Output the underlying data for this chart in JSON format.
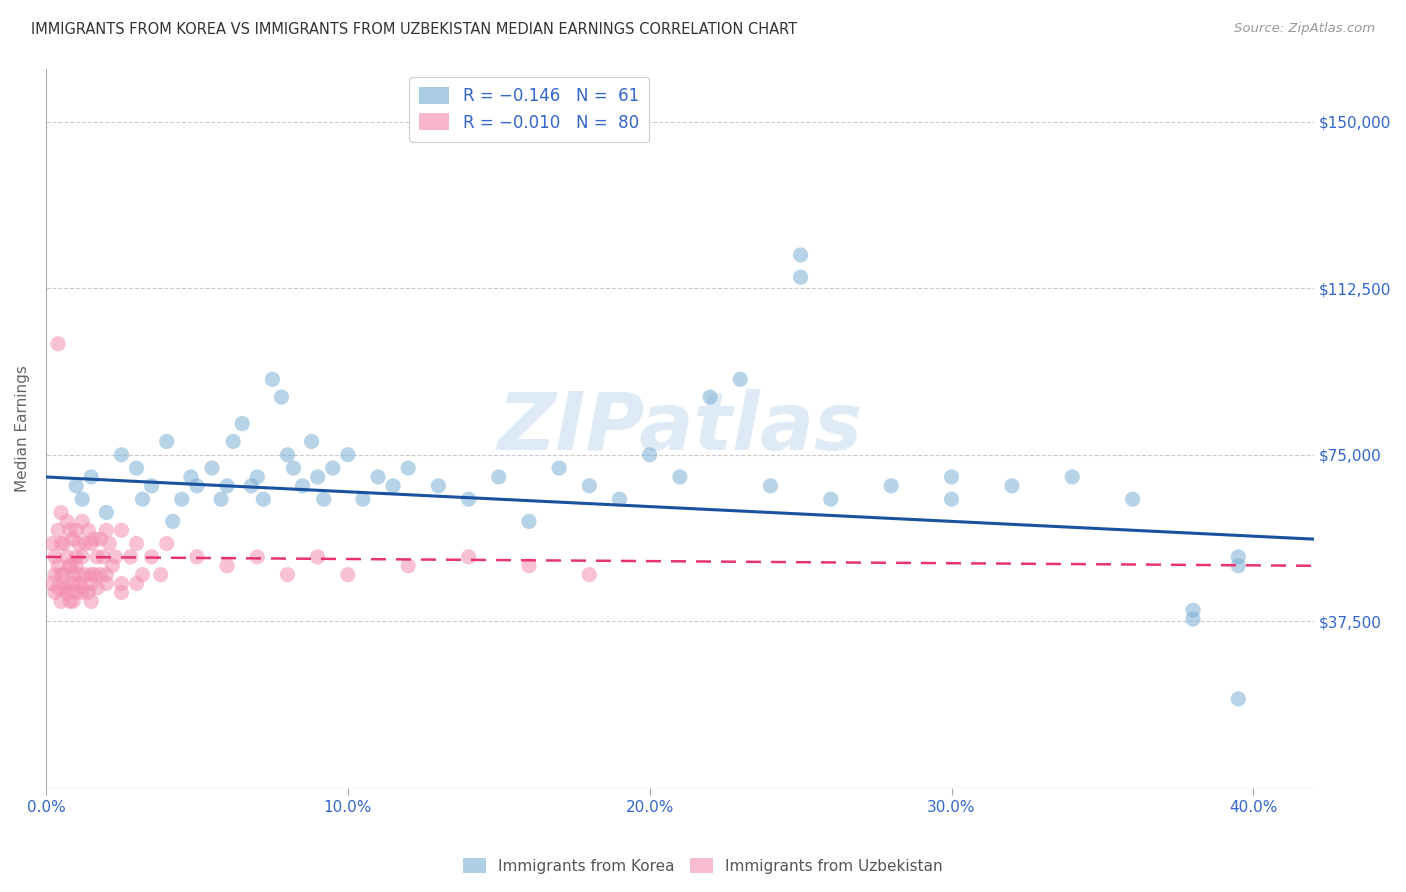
{
  "title": "IMMIGRANTS FROM KOREA VS IMMIGRANTS FROM UZBEKISTAN MEDIAN EARNINGS CORRELATION CHART",
  "source": "Source: ZipAtlas.com",
  "ylabel": "Median Earnings",
  "xlim": [
    0.0,
    0.42
  ],
  "ylim": [
    0,
    162000
  ],
  "yticks": [
    0,
    37500,
    75000,
    112500,
    150000
  ],
  "ytick_labels": [
    "",
    "$37,500",
    "$75,000",
    "$112,500",
    "$150,000"
  ],
  "xticks": [
    0.0,
    0.1,
    0.2,
    0.3,
    0.4
  ],
  "xtick_labels": [
    "0.0%",
    "10.0%",
    "20.0%",
    "30.0%",
    "40.0%"
  ],
  "korea_color": "#7BAFD4",
  "uzbekistan_color": "#F48FB1",
  "watermark_color": "#C8DCF0",
  "watermark": "ZIPatlas",
  "background_color": "#FFFFFF",
  "grid_color": "#CCCCCC",
  "title_color": "#333333",
  "label_color": "#3366CC",
  "source_color": "#999999",
  "ylabel_color": "#666666",
  "legend_label_color": "#3366CC",
  "bottom_legend_color": "#555555",
  "korea_trend_color": "#1A52A0",
  "uzbekistan_trend_color": "#E8336E",
  "korea_scatter_x": [
    0.01,
    0.012,
    0.015,
    0.02,
    0.025,
    0.03,
    0.032,
    0.035,
    0.04,
    0.042,
    0.045,
    0.048,
    0.05,
    0.055,
    0.058,
    0.06,
    0.062,
    0.065,
    0.068,
    0.07,
    0.072,
    0.075,
    0.078,
    0.08,
    0.082,
    0.085,
    0.088,
    0.09,
    0.092,
    0.095,
    0.1,
    0.105,
    0.11,
    0.115,
    0.12,
    0.13,
    0.14,
    0.15,
    0.16,
    0.17,
    0.18,
    0.19,
    0.2,
    0.21,
    0.22,
    0.23,
    0.24,
    0.25,
    0.26,
    0.28,
    0.3,
    0.32,
    0.34,
    0.36,
    0.38,
    0.395,
    0.395,
    0.3,
    0.25,
    0.38,
    0.395
  ],
  "korea_scatter_y": [
    68000,
    65000,
    70000,
    62000,
    75000,
    72000,
    65000,
    68000,
    78000,
    60000,
    65000,
    70000,
    68000,
    72000,
    65000,
    68000,
    78000,
    82000,
    68000,
    70000,
    65000,
    92000,
    88000,
    75000,
    72000,
    68000,
    78000,
    70000,
    65000,
    72000,
    75000,
    65000,
    70000,
    68000,
    72000,
    68000,
    65000,
    70000,
    60000,
    72000,
    68000,
    65000,
    75000,
    70000,
    88000,
    92000,
    68000,
    120000,
    65000,
    68000,
    65000,
    68000,
    70000,
    65000,
    40000,
    50000,
    20000,
    70000,
    115000,
    38000,
    52000
  ],
  "uzbekistan_scatter_x": [
    0.002,
    0.003,
    0.003,
    0.004,
    0.004,
    0.005,
    0.005,
    0.005,
    0.006,
    0.006,
    0.007,
    0.007,
    0.007,
    0.008,
    0.008,
    0.008,
    0.009,
    0.009,
    0.009,
    0.01,
    0.01,
    0.01,
    0.011,
    0.011,
    0.012,
    0.012,
    0.012,
    0.013,
    0.013,
    0.014,
    0.014,
    0.015,
    0.015,
    0.015,
    0.016,
    0.016,
    0.017,
    0.017,
    0.018,
    0.018,
    0.019,
    0.02,
    0.02,
    0.021,
    0.022,
    0.023,
    0.025,
    0.025,
    0.028,
    0.03,
    0.032,
    0.035,
    0.038,
    0.04,
    0.05,
    0.06,
    0.07,
    0.08,
    0.09,
    0.1,
    0.12,
    0.14,
    0.16,
    0.18,
    0.002,
    0.003,
    0.004,
    0.005,
    0.006,
    0.007,
    0.008,
    0.009,
    0.01,
    0.011,
    0.012,
    0.015,
    0.02,
    0.025,
    0.03,
    0.004
  ],
  "uzbekistan_scatter_y": [
    55000,
    52000,
    48000,
    58000,
    45000,
    62000,
    55000,
    48000,
    55000,
    45000,
    60000,
    52000,
    45000,
    58000,
    50000,
    42000,
    56000,
    48000,
    42000,
    58000,
    50000,
    44000,
    55000,
    46000,
    60000,
    52000,
    45000,
    55000,
    48000,
    58000,
    44000,
    55000,
    48000,
    42000,
    56000,
    48000,
    52000,
    45000,
    56000,
    48000,
    52000,
    58000,
    46000,
    55000,
    50000,
    52000,
    58000,
    46000,
    52000,
    55000,
    48000,
    52000,
    48000,
    55000,
    52000,
    50000,
    52000,
    48000,
    52000,
    48000,
    50000,
    52000,
    50000,
    48000,
    46000,
    44000,
    50000,
    42000,
    48000,
    44000,
    50000,
    46000,
    52000,
    48000,
    44000,
    46000,
    48000,
    44000,
    46000,
    100000
  ],
  "korea_trend_x": [
    0.0,
    0.42
  ],
  "korea_trend_y": [
    70000,
    56000
  ],
  "uzbekistan_trend_x": [
    0.0,
    0.42
  ],
  "uzbekistan_trend_y": [
    52000,
    50000
  ]
}
